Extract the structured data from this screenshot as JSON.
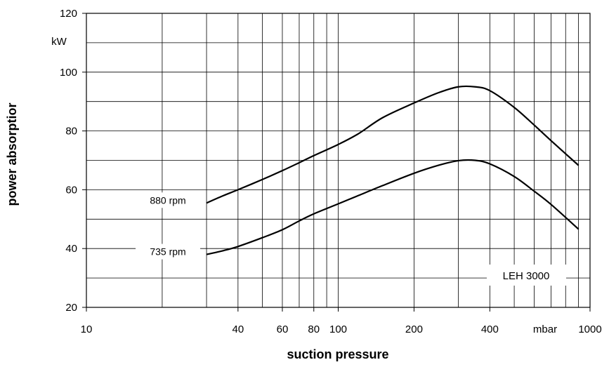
{
  "chart_data": {
    "type": "line",
    "xlabel": "suction pressure",
    "ylabel": "power absorptior",
    "x_unit": "mbar",
    "y_unit": "kW",
    "x_scale": "log",
    "xlim": [
      10,
      1000
    ],
    "ylim": [
      20,
      120
    ],
    "grid": true,
    "x_ticks": [
      10,
      40,
      60,
      80,
      100,
      200,
      400,
      1000
    ],
    "x_tick_labels": [
      "10",
      "40",
      "60",
      "80",
      "100",
      "200",
      "400",
      "1000"
    ],
    "x_grid": [
      20,
      30,
      40,
      50,
      60,
      70,
      80,
      90,
      100,
      200,
      300,
      400,
      500,
      600,
      700,
      800,
      900
    ],
    "y_ticks": [
      20,
      40,
      60,
      80,
      100,
      120
    ],
    "y_tick_labels": [
      "20",
      "40",
      "60",
      "80",
      "100",
      "120"
    ],
    "y_grid": [
      30,
      40,
      50,
      60,
      70,
      80,
      90,
      100,
      110,
      120
    ],
    "box_label": "LEH 3000",
    "series": [
      {
        "name": "880 rpm",
        "x": [
          30,
          35,
          40,
          50,
          60,
          70,
          80,
          100,
          120,
          150,
          200,
          250,
          300,
          350,
          400,
          500,
          600,
          700,
          900
        ],
        "y": [
          55.5,
          58,
          60,
          63.5,
          66.5,
          69.2,
          71.6,
          75.4,
          79,
          84.5,
          89.5,
          93,
          95,
          95,
          93.7,
          88,
          82,
          76.7,
          68.3
        ]
      },
      {
        "name": "735 rpm",
        "x": [
          30,
          35,
          40,
          50,
          60,
          70,
          80,
          100,
          120,
          150,
          200,
          250,
          300,
          350,
          400,
          500,
          600,
          700,
          900
        ],
        "y": [
          38,
          39.3,
          40.7,
          43.7,
          46.4,
          49.4,
          51.8,
          55.2,
          58,
          61.4,
          65.6,
          68.3,
          69.9,
          70,
          68.8,
          64.5,
          59.5,
          55,
          46.6
        ]
      }
    ]
  }
}
